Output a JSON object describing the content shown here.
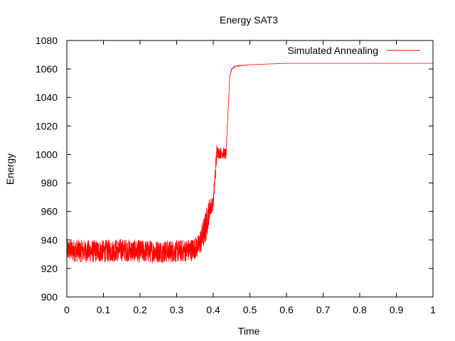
{
  "chart_data": {
    "type": "line",
    "title": "Energy SAT3",
    "xlabel": "Time",
    "ylabel": "Energy",
    "xlim": [
      0,
      1
    ],
    "ylim": [
      900,
      1080
    ],
    "xticks": [
      0,
      0.1,
      0.2,
      0.3,
      0.4,
      0.5,
      0.6,
      0.7,
      0.8,
      0.9,
      1
    ],
    "yticks": [
      900,
      920,
      940,
      960,
      980,
      1000,
      1020,
      1040,
      1060,
      1080
    ],
    "xtick_labels": [
      "0",
      "0.1",
      "0.2",
      "0.3",
      "0.4",
      "0.5",
      "0.6",
      "0.7",
      "0.8",
      "0.9",
      "1"
    ],
    "ytick_labels": [
      "900",
      "920",
      "940",
      "960",
      "980",
      "1000",
      "1020",
      "1040",
      "1060",
      "1080"
    ],
    "grid": false,
    "legend_position": "top-right",
    "series": [
      {
        "name": "Simulated Annealing",
        "color": "#ff0000",
        "x": [
          0,
          0.05,
          0.1,
          0.15,
          0.2,
          0.25,
          0.3,
          0.34,
          0.36,
          0.37,
          0.38,
          0.39,
          0.4,
          0.405,
          0.41,
          0.415,
          0.42,
          0.43,
          0.435,
          0.44,
          0.445,
          0.45,
          0.46,
          0.48,
          0.5,
          0.55,
          0.6,
          0.7,
          0.8,
          0.9,
          1
        ],
        "y": [
          933,
          932,
          932,
          933,
          932,
          932,
          932,
          933,
          936,
          942,
          950,
          962,
          966,
          985,
          1003,
          1001,
          1001,
          1001,
          1000,
          1028,
          1055,
          1060,
          1062,
          1062.5,
          1063,
          1063.5,
          1064,
          1064,
          1064,
          1064,
          1064
        ],
        "noise": [
          8,
          8,
          8,
          8,
          8,
          8,
          8,
          8,
          8,
          10,
          12,
          8,
          4,
          8,
          5,
          4,
          4,
          4,
          4,
          1,
          0.5,
          0.3,
          0.2,
          0.1,
          0,
          0,
          0,
          0,
          0,
          0,
          0
        ]
      }
    ]
  }
}
